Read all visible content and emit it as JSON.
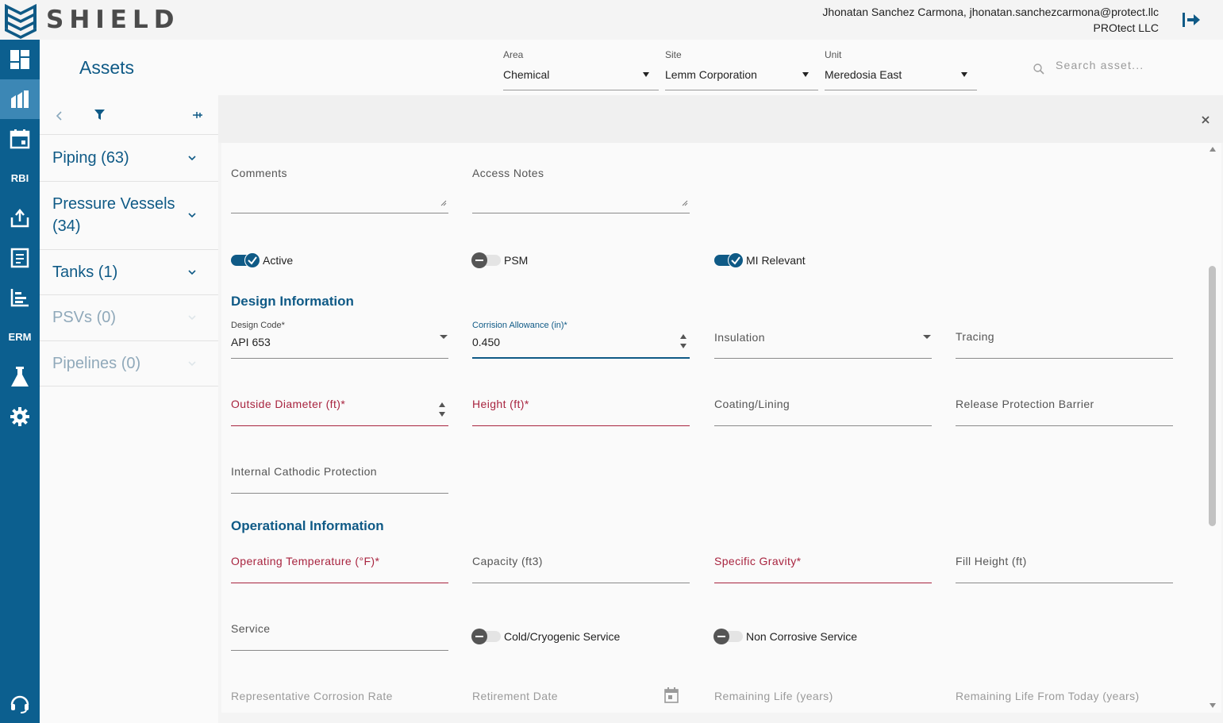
{
  "app": {
    "logo_text": "SHIELD"
  },
  "user": {
    "name": "Jhonatan Sanchez Carmona, jhonatan.sanchezcarmona@protect.llc",
    "company": "PROtect LLC"
  },
  "rail": {
    "rbi_label": "RBI",
    "erm_label": "ERM"
  },
  "assets": {
    "title": "Assets",
    "categories": [
      {
        "label": "Piping (63)",
        "enabled": true
      },
      {
        "label": "Pressure Vessels (34)",
        "enabled": true
      },
      {
        "label": "Tanks (1)",
        "enabled": true
      },
      {
        "label": "PSVs (0)",
        "enabled": false
      },
      {
        "label": "Pipelines (0)",
        "enabled": false
      }
    ]
  },
  "filters": {
    "area": {
      "label": "Area",
      "value": "Chemical"
    },
    "site": {
      "label": "Site",
      "value": "Lemm Corporation"
    },
    "unit": {
      "label": "Unit",
      "value": "Meredosia East"
    },
    "search_placeholder": "Search asset..."
  },
  "form": {
    "comments_label": "Comments",
    "access_notes_label": "Access Notes",
    "toggles": {
      "active": {
        "label": "Active",
        "on": true
      },
      "psm": {
        "label": "PSM",
        "on": false
      },
      "mi_relevant": {
        "label": "MI Relevant",
        "on": true
      },
      "cold_cryogenic": {
        "label": "Cold/Cryogenic Service",
        "on": false
      },
      "non_corrosive": {
        "label": "Non Corrosive Service",
        "on": false
      }
    },
    "design_section": "Design Information",
    "design_code": {
      "label": "Design Code*",
      "value": "API 653"
    },
    "corrosion_allowance": {
      "label": "Corrision Allowance (in)*",
      "value": "0.450"
    },
    "insulation_label": "Insulation",
    "tracing_label": "Tracing",
    "outside_diameter_label": "Outside Diameter (ft)*",
    "height_label": "Height (ft)*",
    "coating_label": "Coating/Lining",
    "release_barrier_label": "Release Protection Barrier",
    "cathodic_label": "Internal Cathodic Protection",
    "operational_section": "Operational Information",
    "op_temp_label": "Operating Temperature (°F)*",
    "capacity_label": "Capacity (ft3)",
    "specific_gravity_label": "Specific Gravity*",
    "fill_height_label": "Fill Height (ft)",
    "service_label": "Service",
    "rep_corrosion_label": "Representative Corrosion Rate",
    "retirement_date_label": "Retirement Date",
    "remaining_life_label": "Remaining Life (years)",
    "remaining_life_today_label": "Remaining Life From Today (years)"
  },
  "colors": {
    "brand": "#0f5a86",
    "rail": "#0c5f8f",
    "rail_active": "#3c87b5",
    "error": "#a8243f"
  }
}
